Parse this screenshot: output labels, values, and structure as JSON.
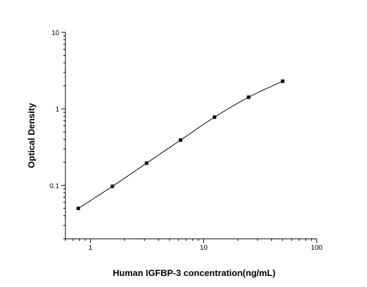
{
  "chart_data": {
    "type": "scatter",
    "title": "",
    "xlabel": "Human IGFBP-3 concentration(ng/mL)",
    "ylabel": "Optical Density",
    "x_scale": "log",
    "y_scale": "log",
    "xlim": [
      0.6,
      100
    ],
    "ylim": [
      0.02,
      10
    ],
    "x_ticks": [
      1,
      10,
      100
    ],
    "x_tick_labels": [
      "1",
      "10",
      "100"
    ],
    "y_ticks": [
      0.1,
      1,
      10
    ],
    "y_tick_labels": [
      "0.1",
      "1",
      "10"
    ],
    "grid": false,
    "legend": "none",
    "colors": {
      "line": "#000000",
      "marker": "#000000",
      "axis": "#000000"
    },
    "series": [
      {
        "marker": "square",
        "fit_line": true,
        "x": [
          0.78,
          1.56,
          3.13,
          6.25,
          12.5,
          25,
          50
        ],
        "y": [
          0.05,
          0.097,
          0.195,
          0.39,
          0.78,
          1.42,
          2.3
        ]
      }
    ]
  }
}
